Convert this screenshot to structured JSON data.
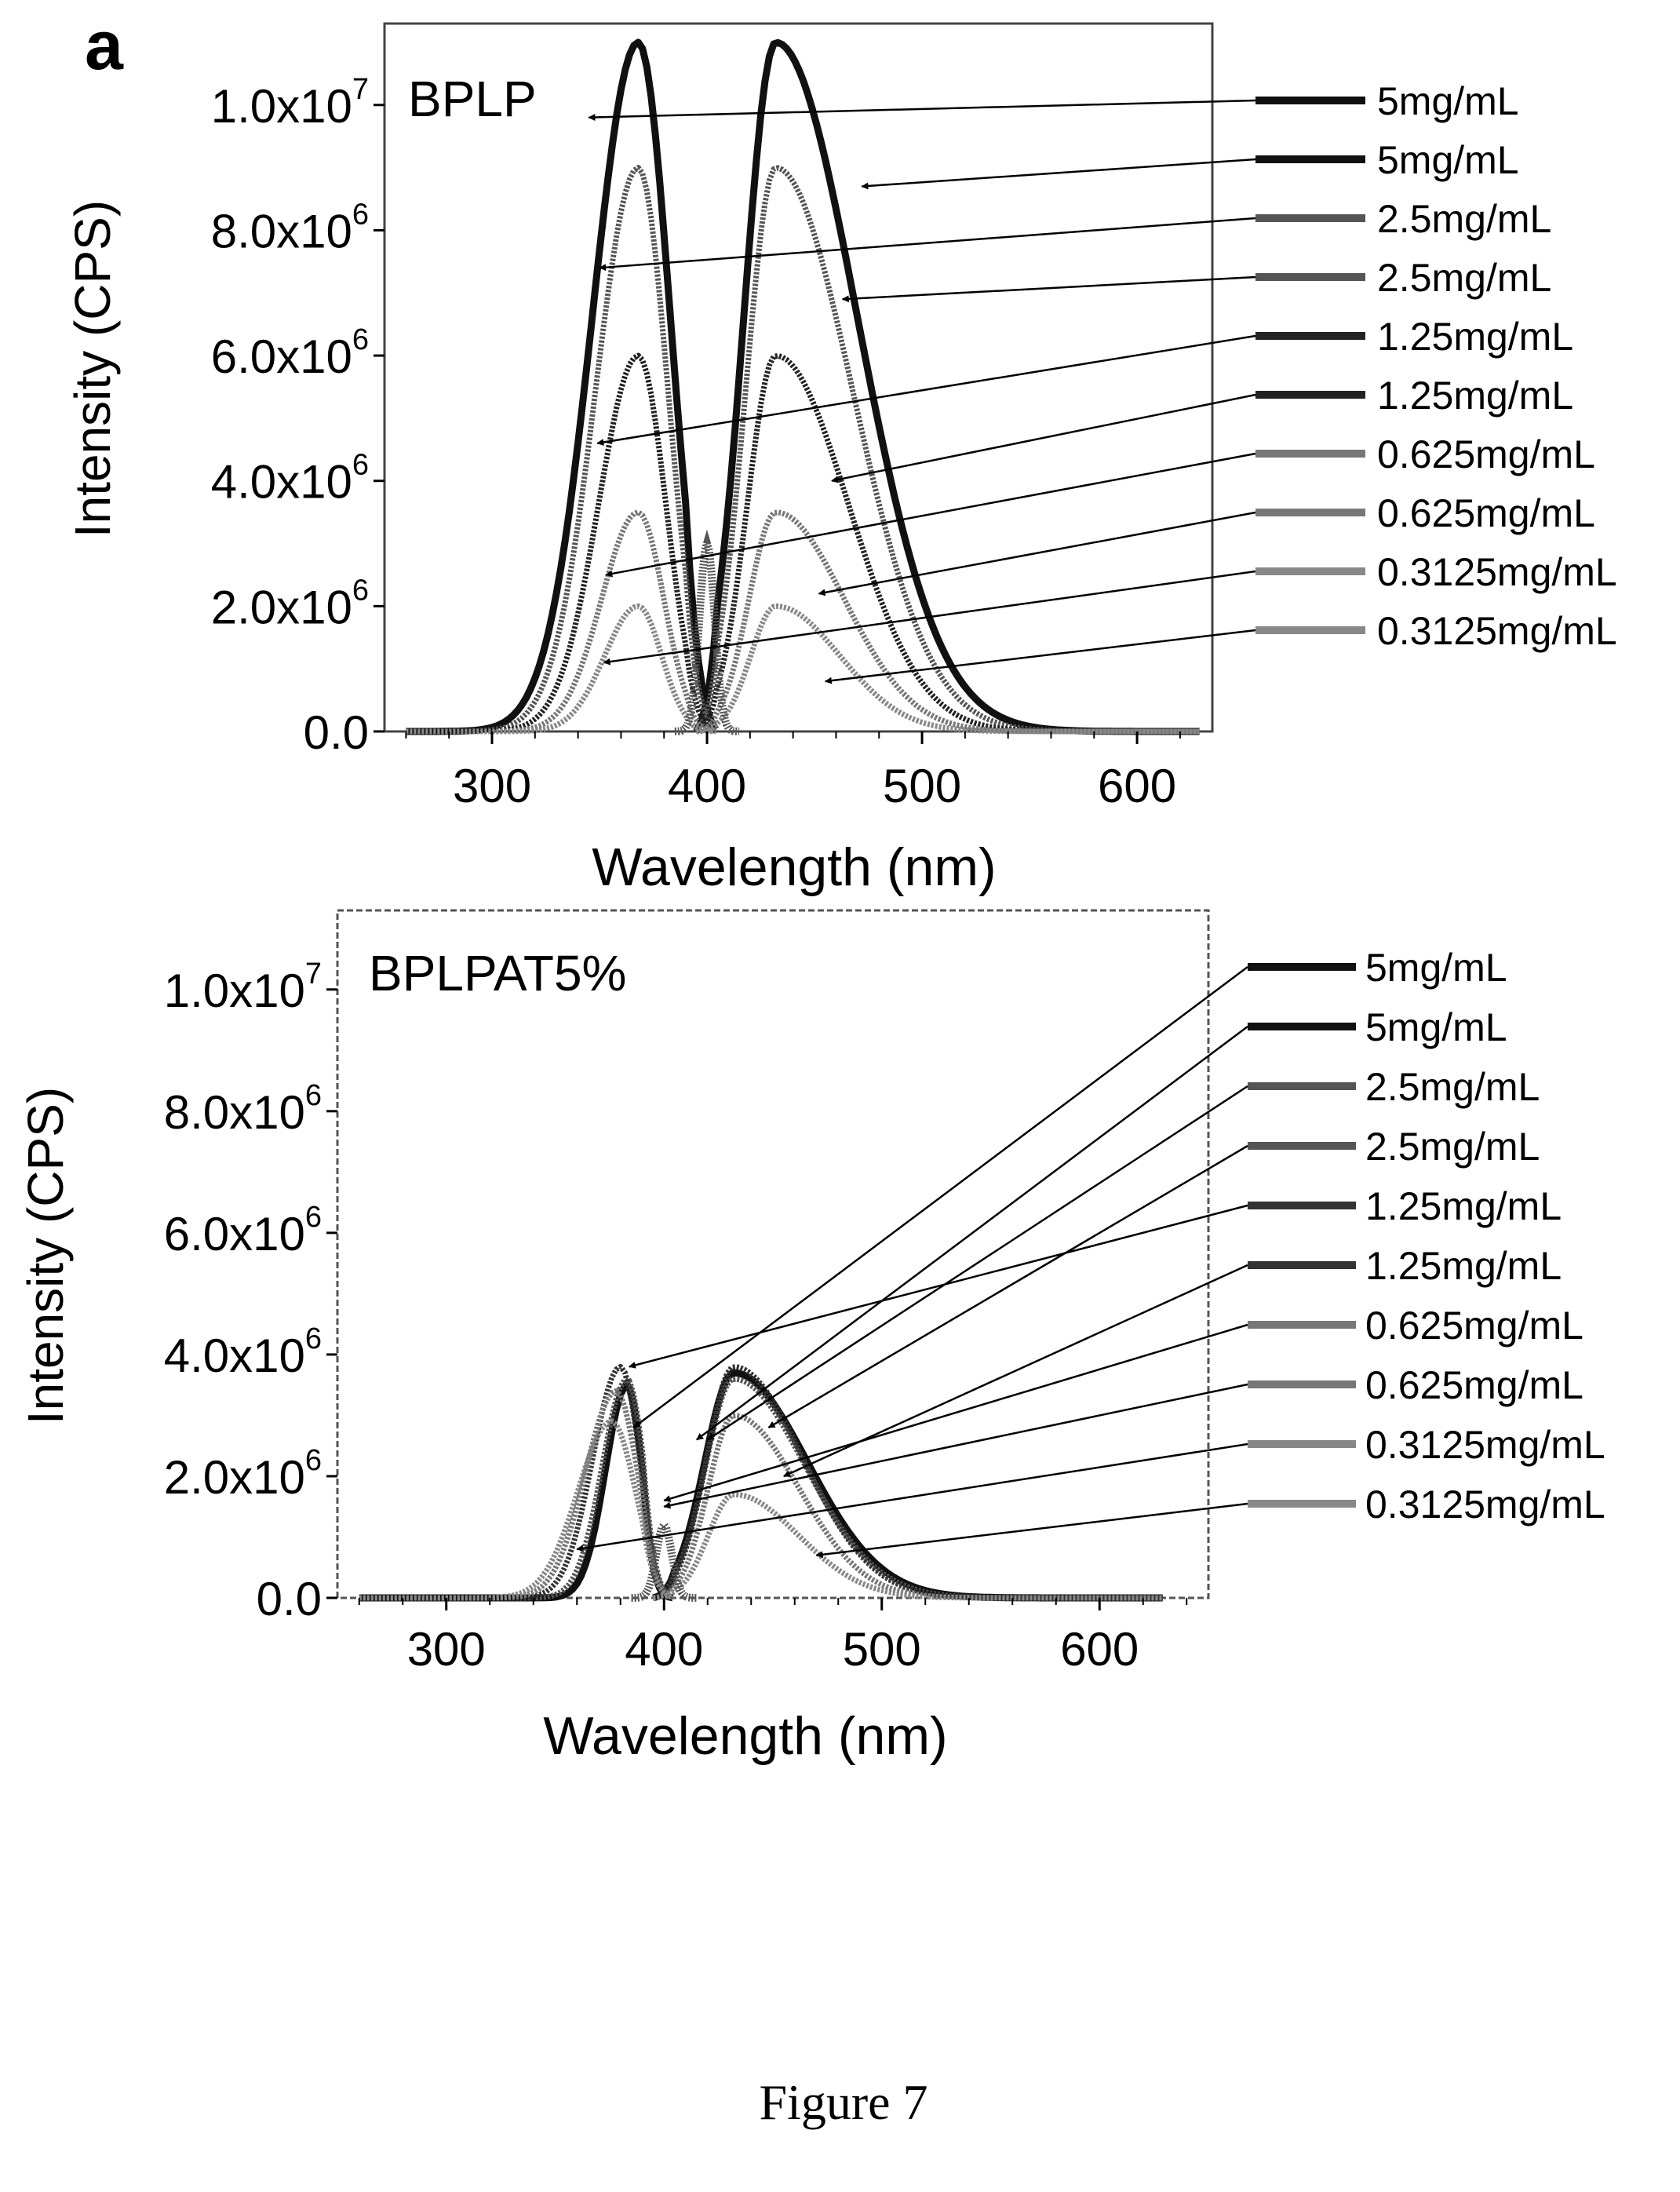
{
  "figure": {
    "panel_letter": "a",
    "caption": "Figure 7"
  },
  "chart_data": [
    {
      "type": "line",
      "title": "BPLP",
      "xlabel": "Wavelength (nm)",
      "ylabel": "Intensity (CPS)",
      "xlim": [
        250,
        635
      ],
      "ylim": [
        0,
        11300000
      ],
      "xticks": [
        300,
        400,
        500,
        600
      ],
      "yticks": [
        {
          "value": 0,
          "mantissa": "0.0",
          "exponent": ""
        },
        {
          "value": 2000000,
          "mantissa": "2.0x10",
          "exponent": "6"
        },
        {
          "value": 4000000,
          "mantissa": "4.0x10",
          "exponent": "6"
        },
        {
          "value": 6000000,
          "mantissa": "6.0x10",
          "exponent": "6"
        },
        {
          "value": 8000000,
          "mantissa": "8.0x10",
          "exponent": "6"
        },
        {
          "value": 10000000,
          "mantissa": "1.0x10",
          "exponent": "7"
        }
      ],
      "grid": false,
      "legend_position": "right",
      "series": [
        {
          "name": "5mg/mL",
          "color": "#111111",
          "kind": "excitation",
          "peak_x": 368,
          "peak_y": 11000000,
          "width": 30,
          "side": "left",
          "arrow_to": [
            345,
            9800000
          ]
        },
        {
          "name": "5mg/mL",
          "color": "#111111",
          "kind": "emission",
          "peak_x": 432,
          "peak_y": 11000000,
          "width": 38,
          "side": "right",
          "arrow_to": [
            472,
            8700000
          ]
        },
        {
          "name": "2.5mg/mL",
          "color": "#555555",
          "kind": "excitation",
          "peak_x": 368,
          "peak_y": 9000000,
          "width": 28,
          "side": "left",
          "arrow_to": [
            350,
            7400000
          ]
        },
        {
          "name": "2.5mg/mL",
          "color": "#555555",
          "kind": "emission",
          "peak_x": 432,
          "peak_y": 9000000,
          "width": 36,
          "side": "right",
          "arrow_to": [
            463,
            6900000
          ]
        },
        {
          "name": "1.25mg/mL",
          "color": "#222222",
          "kind": "excitation",
          "peak_x": 368,
          "peak_y": 6000000,
          "width": 26,
          "side": "left",
          "arrow_to": [
            349,
            4600000
          ]
        },
        {
          "name": "1.25mg/mL",
          "color": "#222222",
          "kind": "emission",
          "peak_x": 432,
          "peak_y": 6000000,
          "width": 34,
          "side": "right",
          "arrow_to": [
            458,
            4000000
          ]
        },
        {
          "name": "0.625mg/mL",
          "color": "#777777",
          "kind": "excitation",
          "peak_x": 368,
          "peak_y": 3500000,
          "width": 24,
          "side": "left",
          "arrow_to": [
            353,
            2500000
          ]
        },
        {
          "name": "0.625mg/mL",
          "color": "#777777",
          "kind": "emission",
          "peak_x": 432,
          "peak_y": 3500000,
          "width": 32,
          "side": "right",
          "arrow_to": [
            452,
            2200000
          ]
        },
        {
          "name": "0.3125mg/mL",
          "color": "#888888",
          "kind": "excitation",
          "peak_x": 368,
          "peak_y": 2000000,
          "width": 22,
          "side": "left",
          "arrow_to": [
            352,
            1100000
          ]
        },
        {
          "name": "0.3125mg/mL",
          "color": "#888888",
          "kind": "emission",
          "peak_x": 432,
          "peak_y": 2000000,
          "width": 30,
          "side": "right",
          "arrow_to": [
            455,
            800000
          ]
        }
      ]
    },
    {
      "type": "line",
      "title": "BPLPAT5%",
      "xlabel": "Wavelength (nm)",
      "ylabel": "Intensity (CPS)",
      "xlim": [
        250,
        650
      ],
      "ylim": [
        0,
        11300000
      ],
      "xticks": [
        300,
        400,
        500,
        600
      ],
      "yticks": [
        {
          "value": 0,
          "mantissa": "0.0",
          "exponent": ""
        },
        {
          "value": 2000000,
          "mantissa": "2.0x10",
          "exponent": "6"
        },
        {
          "value": 4000000,
          "mantissa": "4.0x10",
          "exponent": "6"
        },
        {
          "value": 6000000,
          "mantissa": "6.0x10",
          "exponent": "6"
        },
        {
          "value": 8000000,
          "mantissa": "8.0x10",
          "exponent": "6"
        },
        {
          "value": 10000000,
          "mantissa": "1.0x10",
          "exponent": "7"
        }
      ],
      "grid": false,
      "legend_position": "right",
      "series": [
        {
          "name": "5mg/mL",
          "color": "#111111",
          "kind": "excitation",
          "peak_x": 383,
          "peak_y": 3500000,
          "width": 14,
          "side": "left",
          "arrow_to": [
            386,
            2800000
          ]
        },
        {
          "name": "5mg/mL",
          "color": "#111111",
          "kind": "emission",
          "peak_x": 432,
          "peak_y": 3700000,
          "width": 34,
          "side": "right",
          "arrow_to": [
            415,
            2600000
          ]
        },
        {
          "name": "2.5mg/mL",
          "color": "#555555",
          "kind": "excitation",
          "peak_x": 383,
          "peak_y": 3600000,
          "width": 16,
          "side": "left",
          "arrow_to": [
            420,
            2600000
          ]
        },
        {
          "name": "2.5mg/mL",
          "color": "#555555",
          "kind": "emission",
          "peak_x": 432,
          "peak_y": 3600000,
          "width": 33,
          "side": "right",
          "arrow_to": [
            448,
            2800000
          ]
        },
        {
          "name": "1.25mg/mL",
          "color": "#333333",
          "kind": "excitation",
          "peak_x": 380,
          "peak_y": 3800000,
          "width": 18,
          "side": "left",
          "arrow_to": [
            384,
            3800000
          ]
        },
        {
          "name": "1.25mg/mL",
          "color": "#333333",
          "kind": "emission",
          "peak_x": 432,
          "peak_y": 3800000,
          "width": 32,
          "side": "right",
          "arrow_to": [
            455,
            2000000
          ]
        },
        {
          "name": "0.625mg/mL",
          "color": "#777777",
          "kind": "excitation",
          "peak_x": 378,
          "peak_y": 3400000,
          "width": 20,
          "side": "left",
          "arrow_to": [
            400,
            1600000
          ]
        },
        {
          "name": "0.625mg/mL",
          "color": "#777777",
          "kind": "emission",
          "peak_x": 432,
          "peak_y": 3000000,
          "width": 30,
          "side": "right",
          "arrow_to": [
            400,
            1500000
          ]
        },
        {
          "name": "0.3125mg/mL",
          "color": "#888888",
          "kind": "excitation",
          "peak_x": 376,
          "peak_y": 2900000,
          "width": 22,
          "side": "left",
          "arrow_to": [
            360,
            800000
          ]
        },
        {
          "name": "0.3125mg/mL",
          "color": "#888888",
          "kind": "emission",
          "peak_x": 432,
          "peak_y": 1700000,
          "width": 30,
          "side": "right",
          "arrow_to": [
            470,
            700000
          ]
        }
      ]
    }
  ]
}
